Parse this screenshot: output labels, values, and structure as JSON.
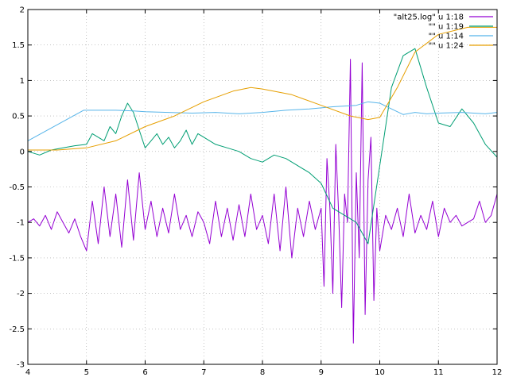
{
  "chart_data": {
    "type": "line",
    "title": "",
    "xlabel": "",
    "ylabel": "",
    "xlim": [
      4,
      12
    ],
    "ylim": [
      -3,
      2
    ],
    "grid": true,
    "legend_position": "top-right",
    "xticks": [
      "4",
      "5",
      "6",
      "7",
      "8",
      "9",
      "10",
      "11",
      "12"
    ],
    "yticks": [
      "-3",
      "-2.5",
      "-2",
      "-1.5",
      "-1",
      "-0.5",
      "0",
      "0.5",
      "1",
      "1.5",
      "2"
    ],
    "series": [
      {
        "name": "\"alt25.log\" u 1:18",
        "color": "#9400d3",
        "x": [
          4.0,
          4.1,
          4.2,
          4.3,
          4.4,
          4.5,
          4.6,
          4.7,
          4.8,
          4.9,
          5.0,
          5.1,
          5.2,
          5.3,
          5.4,
          5.5,
          5.6,
          5.7,
          5.8,
          5.9,
          6.0,
          6.1,
          6.2,
          6.3,
          6.4,
          6.5,
          6.6,
          6.7,
          6.8,
          6.9,
          7.0,
          7.1,
          7.2,
          7.3,
          7.4,
          7.5,
          7.6,
          7.7,
          7.8,
          7.9,
          8.0,
          8.1,
          8.2,
          8.3,
          8.4,
          8.5,
          8.6,
          8.7,
          8.8,
          8.9,
          9.0,
          9.05,
          9.1,
          9.15,
          9.2,
          9.25,
          9.3,
          9.35,
          9.4,
          9.45,
          9.5,
          9.55,
          9.6,
          9.65,
          9.7,
          9.75,
          9.8,
          9.85,
          9.9,
          9.95,
          10.0,
          10.1,
          10.2,
          10.3,
          10.4,
          10.5,
          10.6,
          10.7,
          10.8,
          10.9,
          11.0,
          11.1,
          11.2,
          11.3,
          11.4,
          11.5,
          11.6,
          11.7,
          11.8,
          11.9,
          12.0
        ],
        "y": [
          -1.0,
          -0.95,
          -1.05,
          -0.9,
          -1.1,
          -0.85,
          -1.0,
          -1.15,
          -0.95,
          -1.2,
          -1.4,
          -0.7,
          -1.3,
          -0.5,
          -1.2,
          -0.6,
          -1.35,
          -0.4,
          -1.25,
          -0.3,
          -1.1,
          -0.7,
          -1.2,
          -0.8,
          -1.15,
          -0.6,
          -1.1,
          -0.9,
          -1.2,
          -0.85,
          -1.0,
          -1.3,
          -0.7,
          -1.2,
          -0.8,
          -1.25,
          -0.75,
          -1.2,
          -0.6,
          -1.1,
          -0.9,
          -1.3,
          -0.6,
          -1.4,
          -0.5,
          -1.5,
          -0.8,
          -1.2,
          -0.7,
          -1.1,
          -0.8,
          -1.9,
          -0.1,
          -0.8,
          -2.0,
          0.1,
          -0.9,
          -2.2,
          -0.6,
          -1.0,
          1.3,
          -2.7,
          -0.3,
          -1.5,
          1.25,
          -2.3,
          -0.4,
          0.2,
          -2.1,
          -0.8,
          -1.4,
          -0.9,
          -1.1,
          -0.8,
          -1.2,
          -0.6,
          -1.15,
          -0.9,
          -1.1,
          -0.7,
          -1.2,
          -0.8,
          -1.0,
          -0.9,
          -1.05,
          -1.0,
          -0.95,
          -0.7,
          -1.0,
          -0.9,
          -0.6
        ]
      },
      {
        "name": "\"\" u 1:19",
        "color": "#009e73",
        "x": [
          4.0,
          4.2,
          4.4,
          4.6,
          4.8,
          5.0,
          5.1,
          5.2,
          5.3,
          5.4,
          5.5,
          5.6,
          5.7,
          5.8,
          5.9,
          6.0,
          6.1,
          6.2,
          6.3,
          6.4,
          6.5,
          6.6,
          6.7,
          6.8,
          6.9,
          7.0,
          7.2,
          7.4,
          7.6,
          7.8,
          8.0,
          8.2,
          8.4,
          8.6,
          8.8,
          9.0,
          9.2,
          9.4,
          9.6,
          9.8,
          10.0,
          10.2,
          10.4,
          10.6,
          10.8,
          11.0,
          11.2,
          11.4,
          11.6,
          11.8,
          12.0
        ],
        "y": [
          0.0,
          -0.05,
          0.02,
          0.05,
          0.08,
          0.1,
          0.25,
          0.2,
          0.15,
          0.35,
          0.25,
          0.5,
          0.68,
          0.55,
          0.3,
          0.05,
          0.15,
          0.25,
          0.1,
          0.2,
          0.05,
          0.15,
          0.3,
          0.1,
          0.25,
          0.2,
          0.1,
          0.05,
          0.0,
          -0.1,
          -0.15,
          -0.05,
          -0.1,
          -0.2,
          -0.3,
          -0.45,
          -0.8,
          -0.9,
          -1.0,
          -1.3,
          -0.2,
          0.9,
          1.35,
          1.45,
          0.9,
          0.4,
          0.35,
          0.6,
          0.4,
          0.1,
          -0.08
        ]
      },
      {
        "name": "\"\" u 1:14",
        "color": "#56b4e9",
        "x": [
          4.0,
          4.95,
          5.2,
          5.5,
          5.8,
          6.0,
          6.4,
          6.8,
          7.2,
          7.6,
          8.0,
          8.4,
          8.8,
          9.2,
          9.6,
          9.8,
          10.0,
          10.2,
          10.4,
          10.6,
          10.8,
          11.0,
          11.4,
          11.8,
          12.0
        ],
        "y": [
          0.15,
          0.58,
          0.58,
          0.58,
          0.57,
          0.56,
          0.55,
          0.54,
          0.55,
          0.53,
          0.55,
          0.58,
          0.6,
          0.63,
          0.65,
          0.7,
          0.68,
          0.6,
          0.52,
          0.55,
          0.53,
          0.54,
          0.55,
          0.53,
          0.55
        ]
      },
      {
        "name": "\"\" u 1:24",
        "color": "#e69f00",
        "x": [
          4.0,
          4.5,
          5.0,
          5.5,
          6.0,
          6.5,
          7.0,
          7.5,
          7.8,
          8.0,
          8.5,
          9.0,
          9.5,
          9.8,
          10.0,
          10.3,
          10.6,
          11.0,
          11.5,
          12.0
        ],
        "y": [
          0.02,
          0.02,
          0.05,
          0.15,
          0.35,
          0.5,
          0.7,
          0.85,
          0.9,
          0.88,
          0.8,
          0.65,
          0.5,
          0.45,
          0.48,
          0.9,
          1.4,
          1.65,
          1.75,
          1.75
        ]
      }
    ]
  }
}
